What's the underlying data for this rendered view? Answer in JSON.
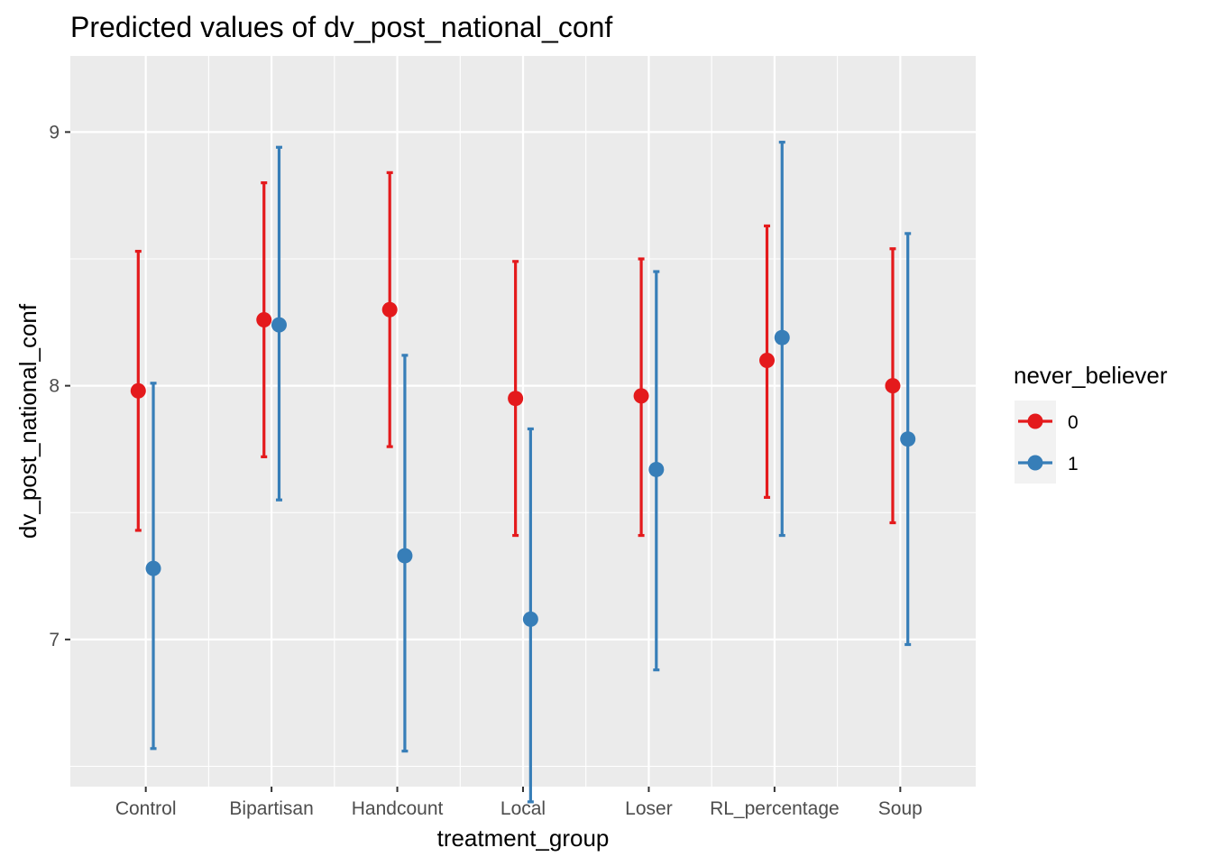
{
  "chart_data": {
    "type": "scatter",
    "subtype": "pointrange",
    "title": "Predicted values of dv_post_national_conf",
    "xlabel": "treatment_group",
    "ylabel": "dv_post_national_conf",
    "categories": [
      "Control",
      "Bipartisan",
      "Handcount",
      "Local",
      "Loser",
      "RL_percentage",
      "Soup"
    ],
    "ylim": [
      6.42,
      9.3
    ],
    "yticks": [
      7,
      8,
      9
    ],
    "grid": true,
    "legend": {
      "title": "never_believer",
      "placement": "right"
    },
    "series": [
      {
        "name": "0",
        "color": "#e41a1c",
        "values": [
          7.98,
          8.26,
          8.3,
          7.95,
          7.96,
          8.1,
          8.0
        ],
        "lower": [
          7.43,
          7.72,
          7.76,
          7.41,
          7.41,
          7.56,
          7.46
        ],
        "upper": [
          8.53,
          8.8,
          8.84,
          8.49,
          8.5,
          8.63,
          8.54
        ]
      },
      {
        "name": "1",
        "color": "#377eb8",
        "values": [
          7.28,
          8.24,
          7.33,
          7.08,
          7.67,
          8.19,
          7.79
        ],
        "lower": [
          6.57,
          7.55,
          6.56,
          6.36,
          6.88,
          7.41,
          6.98
        ],
        "upper": [
          8.01,
          8.94,
          8.12,
          7.83,
          8.45,
          8.96,
          8.6
        ]
      }
    ]
  }
}
